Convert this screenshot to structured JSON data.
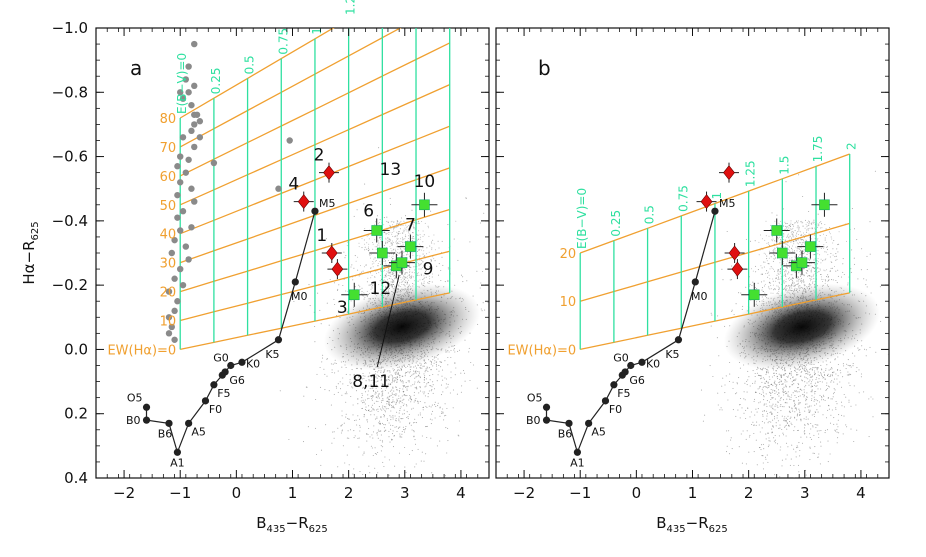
{
  "chart_data": [
    {
      "type": "scatter",
      "panel_label": "a",
      "xlabel_main": "B",
      "xlabel_sub1": "435",
      "xlabel_mid": "−R",
      "xlabel_sub2": "625",
      "ylabel_main": "Hα−R",
      "ylabel_sub": "625",
      "xlim": [
        -2.5,
        4.5
      ],
      "ylim": [
        0.4,
        -1.0
      ],
      "y_inverted": true,
      "xticks": [
        -2,
        -1,
        0,
        1,
        2,
        3,
        4
      ],
      "yticks": [
        -1.0,
        -0.8,
        -0.6,
        -0.4,
        -0.2,
        0.0,
        0.2,
        0.4
      ],
      "ytick_labels": [
        "−1.0",
        "−0.8",
        "−0.6",
        "−0.4",
        "−0.2",
        "0.0",
        "0.2",
        "0.4"
      ],
      "main_sequence": [
        {
          "x": -1.6,
          "y": 0.18,
          "label": "O5"
        },
        {
          "x": -1.6,
          "y": 0.22,
          "label": "B0"
        },
        {
          "x": -1.2,
          "y": 0.23,
          "label": "B6"
        },
        {
          "x": -1.05,
          "y": 0.32,
          "label": "A1"
        },
        {
          "x": -0.85,
          "y": 0.23,
          "label": "A5"
        },
        {
          "x": -0.55,
          "y": 0.16,
          "label": "F0"
        },
        {
          "x": -0.4,
          "y": 0.11,
          "label": "F5"
        },
        {
          "x": -0.25,
          "y": 0.08,
          "label": ""
        },
        {
          "x": -0.2,
          "y": 0.07,
          "label": "G6"
        },
        {
          "x": -0.1,
          "y": 0.05,
          "label": "G0"
        },
        {
          "x": 0.1,
          "y": 0.04,
          "label": "K0"
        },
        {
          "x": 0.75,
          "y": -0.03,
          "label": "K5"
        },
        {
          "x": 1.05,
          "y": -0.21,
          "label": "M0"
        },
        {
          "x": 1.4,
          "y": -0.43,
          "label": "M5"
        }
      ],
      "reddening_labels": [
        "E(B−V)=0",
        "0.25",
        "0.5",
        "0.75",
        "1",
        "1.25",
        "1.5",
        "1.75",
        "2"
      ],
      "ew_labels": [
        "EW(Hα)=0",
        "10",
        "20",
        "30",
        "40",
        "50",
        "60",
        "70",
        "80"
      ],
      "red_diamonds": [
        {
          "x": 1.65,
          "y": -0.55,
          "label": "2"
        },
        {
          "x": 1.2,
          "y": -0.46,
          "label": "4"
        },
        {
          "x": 1.7,
          "y": -0.3,
          "label": "1"
        },
        {
          "x": 1.8,
          "y": -0.25,
          "label": ""
        }
      ],
      "green_squares": [
        {
          "x": 2.1,
          "y": -0.17,
          "label": "3"
        },
        {
          "x": 2.5,
          "y": -0.37,
          "label": "6"
        },
        {
          "x": 2.6,
          "y": -0.3,
          "label": "13"
        },
        {
          "x": 2.85,
          "y": -0.26,
          "label": "12"
        },
        {
          "x": 2.95,
          "y": -0.27,
          "label": "9"
        },
        {
          "x": 3.1,
          "y": -0.32,
          "label": "7"
        },
        {
          "x": 3.35,
          "y": -0.45,
          "label": "10"
        }
      ],
      "annotation_labels": [
        "8,11"
      ],
      "gray_points": [
        {
          "x": -0.75,
          "y": -0.95
        },
        {
          "x": -0.85,
          "y": -0.88
        },
        {
          "x": -0.9,
          "y": -0.84
        },
        {
          "x": -0.75,
          "y": -0.82
        },
        {
          "x": -1.0,
          "y": -0.8
        },
        {
          "x": -0.85,
          "y": -0.8
        },
        {
          "x": -0.95,
          "y": -0.78
        },
        {
          "x": -0.8,
          "y": -0.76
        },
        {
          "x": -0.75,
          "y": -0.73
        },
        {
          "x": -0.7,
          "y": -0.73
        },
        {
          "x": -0.65,
          "y": -0.71
        },
        {
          "x": -0.75,
          "y": -0.7
        },
        {
          "x": -0.8,
          "y": -0.68
        },
        {
          "x": -0.65,
          "y": -0.66
        },
        {
          "x": -0.95,
          "y": -0.66
        },
        {
          "x": -0.75,
          "y": -0.63
        },
        {
          "x": -1.0,
          "y": -0.6
        },
        {
          "x": -0.85,
          "y": -0.59
        },
        {
          "x": -1.05,
          "y": -0.57
        },
        {
          "x": -0.9,
          "y": -0.55
        },
        {
          "x": -1.0,
          "y": -0.52
        },
        {
          "x": -0.8,
          "y": -0.5
        },
        {
          "x": -1.05,
          "y": -0.48
        },
        {
          "x": -0.75,
          "y": -0.46
        },
        {
          "x": -0.95,
          "y": -0.43
        },
        {
          "x": -1.05,
          "y": -0.41
        },
        {
          "x": -0.8,
          "y": -0.38
        },
        {
          "x": -1.0,
          "y": -0.37
        },
        {
          "x": -1.1,
          "y": -0.34
        },
        {
          "x": -0.9,
          "y": -0.32
        },
        {
          "x": -1.15,
          "y": -0.3
        },
        {
          "x": -0.85,
          "y": -0.28
        },
        {
          "x": -1.0,
          "y": -0.25
        },
        {
          "x": -1.1,
          "y": -0.22
        },
        {
          "x": -0.95,
          "y": -0.2
        },
        {
          "x": -1.2,
          "y": -0.18
        },
        {
          "x": -1.05,
          "y": -0.15
        },
        {
          "x": -1.1,
          "y": -0.12
        },
        {
          "x": -1.2,
          "y": -0.1
        },
        {
          "x": -1.15,
          "y": -0.07
        },
        {
          "x": -1.2,
          "y": -0.05
        },
        {
          "x": -1.1,
          "y": -0.03
        },
        {
          "x": -0.4,
          "y": -0.58
        },
        {
          "x": 0.95,
          "y": -0.65
        },
        {
          "x": 0.75,
          "y": -0.5
        }
      ]
    },
    {
      "type": "scatter",
      "panel_label": "b",
      "xlabel_main": "B",
      "xlabel_sub1": "435",
      "xlabel_mid": "−R",
      "xlabel_sub2": "625",
      "xlim": [
        -2.5,
        4.5
      ],
      "ylim": [
        0.4,
        -1.0
      ],
      "y_inverted": true,
      "xticks": [
        -2,
        -1,
        0,
        1,
        2,
        3,
        4
      ],
      "main_sequence": [
        {
          "x": -1.6,
          "y": 0.18,
          "label": "O5"
        },
        {
          "x": -1.6,
          "y": 0.22,
          "label": "B0"
        },
        {
          "x": -1.2,
          "y": 0.23,
          "label": "B6"
        },
        {
          "x": -1.05,
          "y": 0.32,
          "label": "A1"
        },
        {
          "x": -0.85,
          "y": 0.23,
          "label": "A5"
        },
        {
          "x": -0.55,
          "y": 0.16,
          "label": "F0"
        },
        {
          "x": -0.4,
          "y": 0.11,
          "label": "F5"
        },
        {
          "x": -0.25,
          "y": 0.08,
          "label": ""
        },
        {
          "x": -0.2,
          "y": 0.07,
          "label": "G6"
        },
        {
          "x": -0.1,
          "y": 0.05,
          "label": "G0"
        },
        {
          "x": 0.1,
          "y": 0.04,
          "label": "K0"
        },
        {
          "x": 0.75,
          "y": -0.03,
          "label": "K5"
        },
        {
          "x": 1.05,
          "y": -0.21,
          "label": "M0"
        },
        {
          "x": 1.4,
          "y": -0.43,
          "label": "M5"
        }
      ],
      "reddening_labels": [
        "E(B−V)=0",
        "0.25",
        "0.5",
        "0.75",
        "1",
        "1.25",
        "1.5",
        "1.75",
        "2"
      ],
      "ew_labels": [
        "EW(Hα)=0",
        "10",
        "20"
      ],
      "red_diamonds": [
        {
          "x": 1.65,
          "y": -0.55,
          "label": ""
        },
        {
          "x": 1.25,
          "y": -0.46,
          "label": ""
        },
        {
          "x": 1.75,
          "y": -0.3,
          "label": ""
        },
        {
          "x": 1.8,
          "y": -0.25,
          "label": ""
        }
      ],
      "green_squares": [
        {
          "x": 2.1,
          "y": -0.17,
          "label": ""
        },
        {
          "x": 2.5,
          "y": -0.37,
          "label": ""
        },
        {
          "x": 2.6,
          "y": -0.3,
          "label": ""
        },
        {
          "x": 2.85,
          "y": -0.26,
          "label": ""
        },
        {
          "x": 2.95,
          "y": -0.27,
          "label": ""
        },
        {
          "x": 3.1,
          "y": -0.32,
          "label": ""
        },
        {
          "x": 3.35,
          "y": -0.45,
          "label": ""
        }
      ]
    }
  ],
  "colors": {
    "grid_green": "#2fe0a0",
    "grid_orange": "#f0a030",
    "diamond_red": "#e01010",
    "square_green": "#44e030",
    "cloud_gray": "#666666",
    "main_seq": "#222222",
    "gray_points": "#8a8a8a"
  }
}
